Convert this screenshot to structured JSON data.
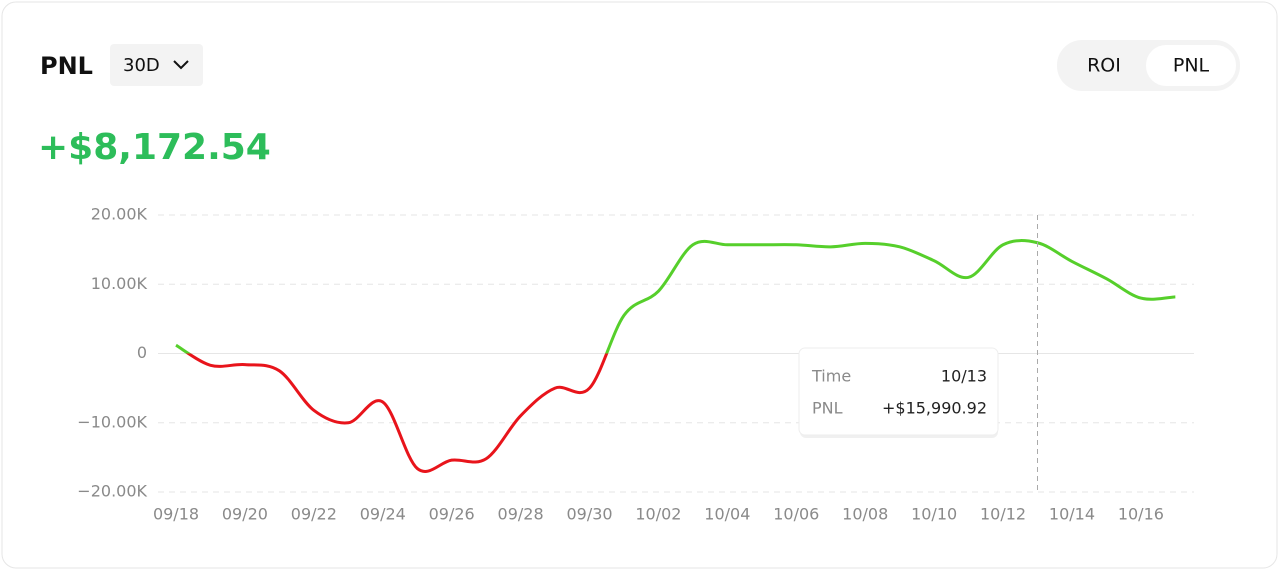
{
  "header": {
    "title": "PNL",
    "period": "30D",
    "toggle": [
      "ROI",
      "PNL"
    ],
    "total": "+$8,172.54"
  },
  "tooltip": {
    "time_label": "Time",
    "time": "10/13",
    "pnl_label": "PNL",
    "pnl": "+$15,990.92"
  },
  "chart_data": {
    "type": "line",
    "categories": [
      "09/18",
      null,
      "09/20",
      null,
      "09/22",
      null,
      "09/24",
      null,
      "09/26",
      null,
      "09/28",
      null,
      "09/30",
      null,
      "10/02",
      null,
      "10/04",
      null,
      "10/06",
      null,
      "10/08",
      null,
      "10/10",
      null,
      "10/12",
      null,
      "10/14",
      null,
      "10/16",
      null
    ],
    "values": [
      1200,
      -1700,
      -1600,
      -2500,
      -8200,
      -10000,
      -7000,
      -16600,
      -15400,
      -15200,
      -9000,
      -5000,
      -5000,
      5500,
      9000,
      15700,
      15700,
      15700,
      15700,
      15400,
      15900,
      15400,
      13400,
      11000,
      15700,
      15990.92,
      13300,
      10800,
      8000,
      8172.54
    ],
    "positive_color": "#56cf2b",
    "negative_color": "#e8141b",
    "ylim": [
      -20000,
      20000
    ],
    "yticks": [
      {
        "value": -20000,
        "label": "−20.00K"
      },
      {
        "value": -10000,
        "label": "−10.00K"
      },
      0,
      {
        "value": 10000,
        "label": "10.00K"
      },
      {
        "value": 20000,
        "label": "20.00K"
      }
    ],
    "grid": true
  }
}
